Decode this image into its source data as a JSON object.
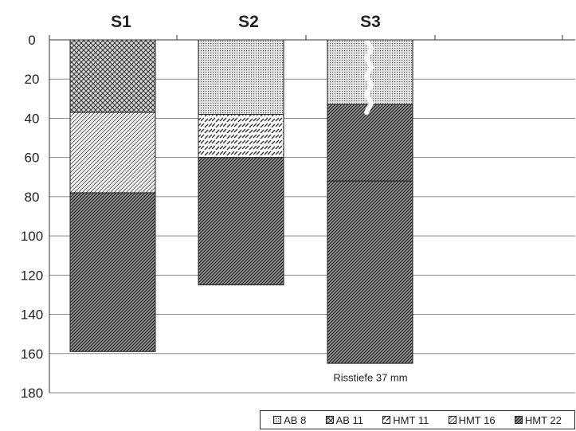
{
  "chart_data": {
    "type": "bar",
    "subtype": "stacked-column-inverted",
    "categories": [
      "S1",
      "S2",
      "S3"
    ],
    "ylim": [
      0,
      180
    ],
    "y_ticks": [
      "0",
      "20",
      "40",
      "60",
      "80",
      "100",
      "120",
      "140",
      "160",
      "180"
    ],
    "y_inverted": true,
    "grid": true,
    "legend_position": "bottom-right",
    "series": [
      {
        "name": "AB 8",
        "pattern": "fine-dots",
        "color": "#cfcfcf"
      },
      {
        "name": "AB 11",
        "pattern": "crosshatch",
        "color": "#b8b8b8"
      },
      {
        "name": "HMT 11",
        "pattern": "open",
        "color": "#ffffff"
      },
      {
        "name": "HMT 16",
        "pattern": "light-diagonal",
        "color": "#dedede"
      },
      {
        "name": "HMT 22",
        "pattern": "dense-diagonal",
        "color": "#7a7a7a"
      }
    ],
    "columns": [
      {
        "category": "S1",
        "layers": [
          {
            "series": "AB 11",
            "from": 0,
            "to": 37
          },
          {
            "series": "HMT 16",
            "from": 37,
            "to": 78
          },
          {
            "series": "HMT 22",
            "from": 78,
            "to": 159
          }
        ]
      },
      {
        "category": "S2",
        "layers": [
          {
            "series": "AB 8",
            "from": 0,
            "to": 38
          },
          {
            "series": "HMT 11",
            "from": 38,
            "to": 60
          },
          {
            "series": "HMT 22",
            "from": 60,
            "to": 125
          }
        ]
      },
      {
        "category": "S3",
        "layers": [
          {
            "series": "AB 8",
            "from": 0,
            "to": 33
          },
          {
            "series": "HMT 22",
            "from": 33,
            "to": 72
          },
          {
            "series": "HMT 22",
            "from": 72,
            "to": 165
          }
        ]
      }
    ],
    "annotations": [
      {
        "text": "Risstiefe 37 mm",
        "category": "S3",
        "y": 172
      },
      {
        "text": "",
        "kind": "crack-line",
        "category": "S3",
        "from": 0,
        "to": 37
      }
    ]
  }
}
